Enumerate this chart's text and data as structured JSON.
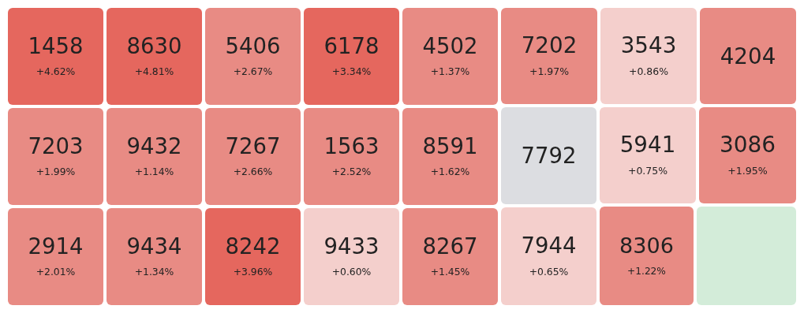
{
  "chart_data": {
    "type": "other",
    "categories": [
      "1458",
      "7203",
      "2914",
      "8630",
      "9432",
      "9434",
      "5406",
      "7267",
      "8242",
      "6178",
      "1563",
      "9433",
      "4502",
      "8591",
      "8267",
      "7202",
      "3543",
      "4204",
      "7792",
      "7944",
      "5941",
      "3086",
      "8306",
      null
    ],
    "values": [
      4.62,
      1.99,
      2.01,
      4.81,
      1.14,
      1.34,
      2.67,
      2.66,
      3.96,
      3.34,
      2.52,
      0.6,
      1.37,
      1.62,
      1.45,
      1.97,
      0.86,
      null,
      null,
      0.65,
      0.75,
      1.95,
      1.22,
      null
    ],
    "value_labels": [
      "+4.62%",
      "+1.99%",
      "+2.01%",
      "+4.81%",
      "+1.14%",
      "+1.34%",
      "+2.67%",
      "+2.66%",
      "+3.96%",
      "+3.34%",
      "+2.52%",
      "+0.60%",
      "+1.37%",
      "+1.62%",
      "+1.45%",
      "+1.97%",
      "+0.86%",
      null,
      null,
      "+0.65%",
      "+0.75%",
      "+1.95%",
      "+1.22%",
      null
    ],
    "colors": [
      null,
      null,
      null,
      null,
      null,
      null,
      null,
      null,
      null,
      null,
      null,
      null,
      null,
      null,
      null,
      null,
      null,
      "#e88b84",
      "#dcdde1",
      null,
      null,
      null,
      null,
      "#d3ecd9"
    ]
  }
}
